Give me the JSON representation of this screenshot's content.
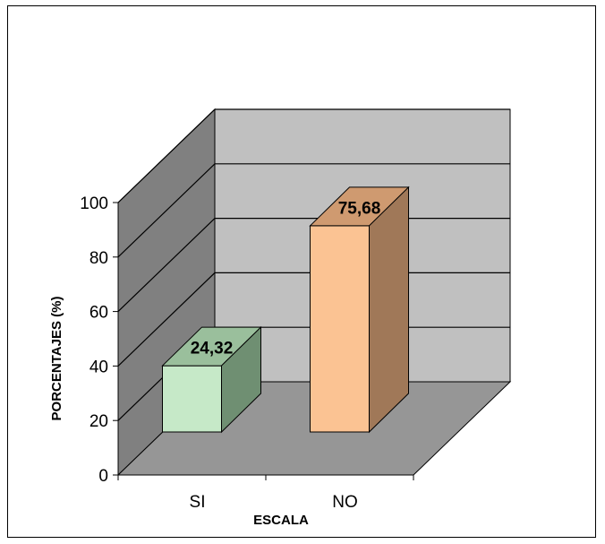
{
  "chart_data": {
    "type": "bar",
    "categories": [
      "SI",
      "NO"
    ],
    "values": [
      24.32,
      75.68
    ],
    "data_labels": [
      "24,32",
      "75,68"
    ],
    "xlabel": "ESCALA",
    "ylabel": "PORCENTAJES (%)",
    "ylim": [
      0,
      100
    ],
    "yticks": [
      "0",
      "20",
      "40",
      "60",
      "80",
      "100"
    ],
    "grid": true,
    "three_d": true,
    "colors": {
      "wall": "#c0c0c0",
      "side_wall": "#808080",
      "floor": "#969696",
      "bar_SI": {
        "front": "#c6e9c8",
        "top": "#9abf9c",
        "side": "#6f8f72"
      },
      "bar_NO": {
        "front": "#fbc393",
        "top": "#cf9a70",
        "side": "#a07858"
      }
    }
  }
}
